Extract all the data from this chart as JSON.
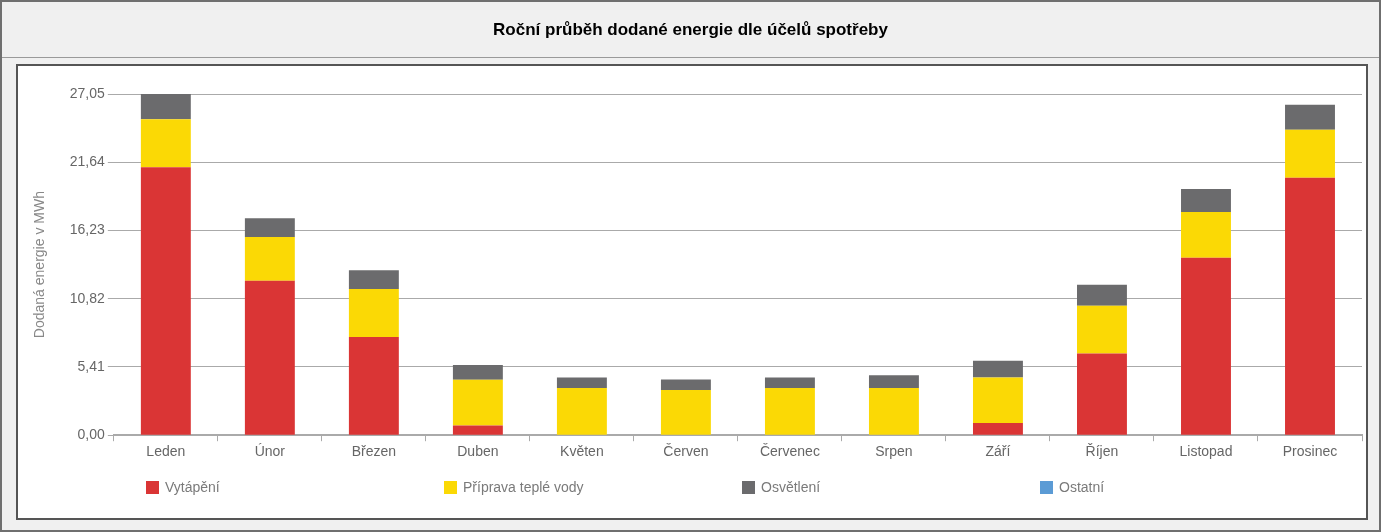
{
  "chart_data": {
    "type": "bar",
    "title": "Roční průběh dodané energie dle účelů spotřeby",
    "ylabel": "Dodaná energie v MWh",
    "categories": [
      "Leden",
      "Únor",
      "Březen",
      "Duben",
      "Květen",
      "Červen",
      "Červenec",
      "Srpen",
      "Září",
      "Říjen",
      "Listopad",
      "Prosinec"
    ],
    "series": [
      {
        "name": "Vytápění",
        "color": "#da3535",
        "values": [
          21.24,
          12.25,
          7.79,
          0.77,
          0,
          0,
          0,
          0,
          0.97,
          6.47,
          14.06,
          20.42
        ]
      },
      {
        "name": "Příprava teplé vody",
        "color": "#fbd905",
        "values": [
          3.8,
          3.46,
          3.8,
          3.63,
          3.74,
          3.59,
          3.75,
          3.75,
          3.61,
          3.79,
          3.63,
          3.8
        ]
      },
      {
        "name": "Osvětlení",
        "color": "#6b6b6d",
        "values": [
          2.01,
          1.49,
          1.48,
          1.16,
          0.83,
          0.83,
          0.83,
          1.0,
          1.33,
          1.66,
          1.82,
          1.98
        ]
      },
      {
        "name": "Ostatní",
        "color": "#5b9bd5",
        "values": [
          0,
          0,
          0,
          0,
          0,
          0,
          0,
          0,
          0,
          0,
          0,
          0
        ]
      }
    ],
    "stacked": true,
    "ylim": [
      0,
      27.05
    ],
    "yticks": [
      {
        "value": 0,
        "label": "0,00"
      },
      {
        "value": 5.41,
        "label": "5,41"
      },
      {
        "value": 10.82,
        "label": "10,82"
      },
      {
        "value": 16.23,
        "label": "16,23"
      },
      {
        "value": 21.64,
        "label": "21,64"
      },
      {
        "value": 27.05,
        "label": "27,05"
      }
    ],
    "grid": "y",
    "legend": "bottom"
  }
}
